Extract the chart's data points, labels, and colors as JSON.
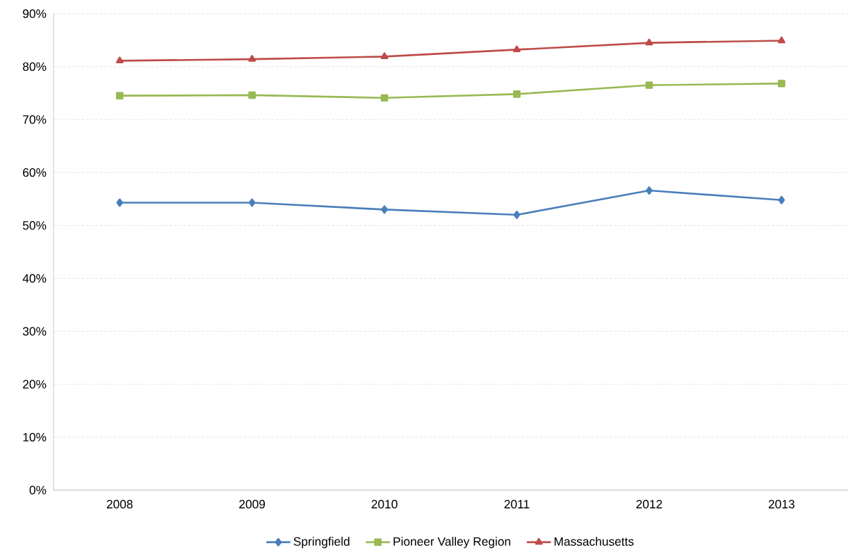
{
  "chart_data": {
    "type": "line",
    "categories": [
      "2008",
      "2009",
      "2010",
      "2011",
      "2012",
      "2013"
    ],
    "series": [
      {
        "name": "Springfield",
        "color": "#4a7ebb",
        "marker": "diamond",
        "values": [
          54.3,
          54.3,
          53.0,
          52.0,
          56.6,
          54.8
        ]
      },
      {
        "name": "Pioneer Valley Region",
        "color": "#98b954",
        "marker": "square",
        "values": [
          74.5,
          74.6,
          74.1,
          74.8,
          76.5,
          76.8
        ]
      },
      {
        "name": "Massachusetts",
        "color": "#be4b48",
        "marker": "triangle",
        "values": [
          81.1,
          81.4,
          81.9,
          83.2,
          84.5,
          84.9
        ]
      }
    ],
    "ylim": [
      0,
      90
    ],
    "yticks": [
      {
        "value": 0,
        "label": "0%"
      },
      {
        "value": 10,
        "label": "10%"
      },
      {
        "value": 20,
        "label": "20%"
      },
      {
        "value": 30,
        "label": "30%"
      },
      {
        "value": 40,
        "label": "40%"
      },
      {
        "value": 50,
        "label": "50%"
      },
      {
        "value": 60,
        "label": "60%"
      },
      {
        "value": 70,
        "label": "70%"
      },
      {
        "value": 80,
        "label": "80%"
      },
      {
        "value": 90,
        "label": "90%"
      }
    ],
    "grid": "y",
    "legend": "bottom",
    "line_style": "solid"
  }
}
